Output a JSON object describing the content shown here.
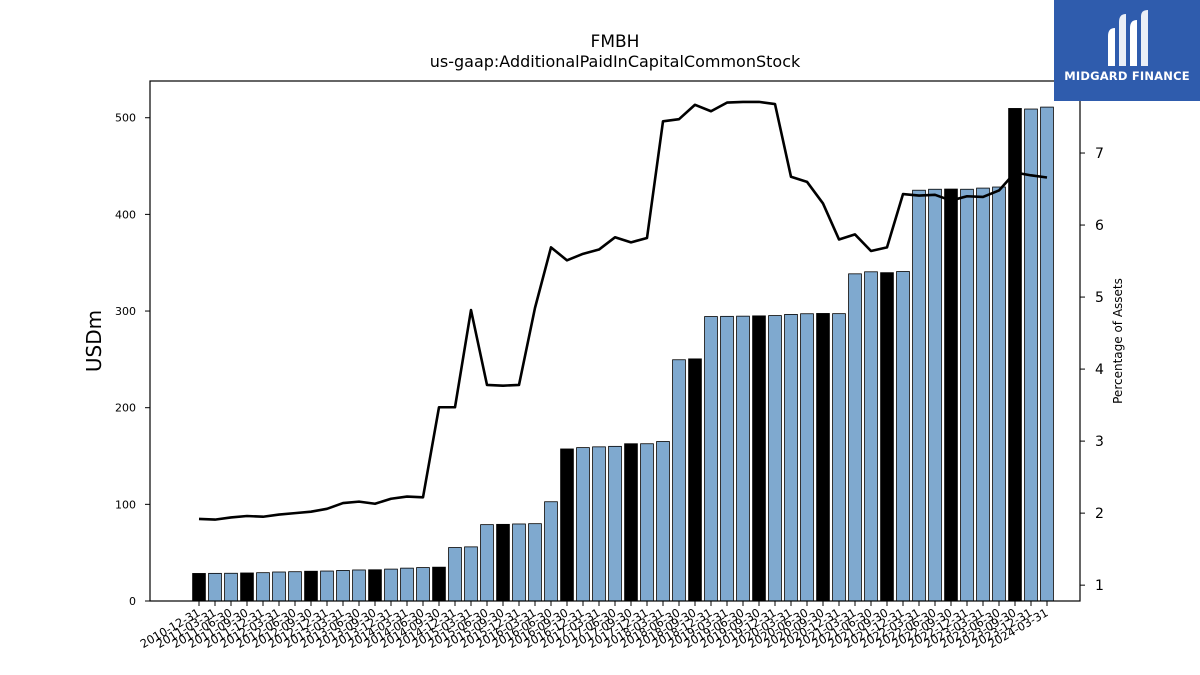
{
  "chart_data": {
    "type": "bar+line",
    "title": "FMBH",
    "subtitle": "us-gaap:AdditionalPaidInCapitalCommonStock",
    "ylabel": "USDm",
    "y2label": "Percentage of Assets",
    "ylim": [
      0,
      538
    ],
    "y2lim": [
      0.78,
      8.0
    ],
    "yticks": [
      0,
      100,
      200,
      300,
      400,
      500
    ],
    "y2ticks": [
      1,
      2,
      3,
      4,
      5,
      6,
      7
    ],
    "categories": [
      "2010-12-31",
      "2011-03-31",
      "2011-06-30",
      "2011-09-30",
      "2011-12-31",
      "2012-03-31",
      "2012-06-30",
      "2012-09-30",
      "2012-12-31",
      "2013-03-31",
      "2013-06-30",
      "2013-09-30",
      "2013-12-31",
      "2014-03-31",
      "2014-06-30",
      "2014-09-30",
      "2014-12-31",
      "2015-03-31",
      "2015-06-30",
      "2015-09-30",
      "2015-12-31",
      "2016-03-31",
      "2016-06-30",
      "2016-09-30",
      "2016-12-31",
      "2017-03-31",
      "2017-06-30",
      "2017-09-30",
      "2017-12-31",
      "2018-03-31",
      "2018-06-30",
      "2018-09-30",
      "2018-12-31",
      "2019-03-31",
      "2019-06-30",
      "2019-09-30",
      "2019-12-31",
      "2020-03-31",
      "2020-06-30",
      "2020-09-30",
      "2020-12-31",
      "2021-03-31",
      "2021-06-30",
      "2021-09-30",
      "2021-12-31",
      "2022-03-31",
      "2022-06-30",
      "2022-09-30",
      "2022-12-31",
      "2023-03-31",
      "2023-06-30",
      "2023-09-30",
      "2023-12-31",
      "2024-03-31"
    ],
    "series": [
      {
        "type": "bar",
        "values": [
          28.5,
          28.6,
          28.7,
          29,
          29.3,
          30,
          30.3,
          30.8,
          31,
          31.6,
          32.1,
          32.3,
          33,
          34,
          34.6,
          35,
          55.3,
          56,
          79,
          79.3,
          79.7,
          80,
          102.7,
          157.3,
          158.7,
          159.5,
          160,
          162.7,
          162.7,
          165,
          249.6,
          250.5,
          294.3,
          294.5,
          294.7,
          295,
          295.3,
          296.5,
          297.2,
          297.5,
          297.3,
          338.5,
          340.6,
          339.7,
          340.9,
          425,
          426,
          426.2,
          426,
          427.2,
          428.3,
          509.6,
          509,
          511
        ],
        "highlight": [
          true,
          false,
          false,
          true,
          false,
          false,
          false,
          true,
          false,
          false,
          false,
          true,
          false,
          false,
          false,
          true,
          false,
          false,
          false,
          true,
          false,
          false,
          false,
          true,
          false,
          false,
          false,
          true,
          false,
          false,
          false,
          true,
          false,
          false,
          false,
          true,
          false,
          false,
          false,
          true,
          false,
          false,
          false,
          true,
          false,
          false,
          false,
          true,
          false,
          false,
          false,
          true,
          false,
          false
        ]
      },
      {
        "type": "line",
        "axis": "right",
        "values": [
          1.92,
          1.91,
          1.94,
          1.96,
          1.95,
          1.98,
          2,
          2.02,
          2.06,
          2.14,
          2.16,
          2.13,
          2.2,
          2.23,
          2.22,
          3.47,
          3.47,
          4.82,
          3.78,
          3.77,
          3.78,
          4.85,
          5.69,
          5.51,
          5.6,
          5.66,
          5.83,
          5.76,
          5.82,
          7.44,
          7.47,
          7.67,
          7.58,
          7.7,
          7.71,
          7.71,
          7.68,
          6.67,
          6.6,
          6.3,
          5.8,
          5.87,
          5.64,
          5.69,
          6.43,
          6.41,
          6.42,
          6.34,
          6.4,
          6.39,
          6.48,
          6.73,
          6.69,
          6.66
        ]
      }
    ],
    "colors": {
      "bar": "#7fa9cf",
      "bar_highlight": "#000000",
      "bar_edge": "#000000",
      "line": "#000000"
    }
  },
  "logo": {
    "text": "MIDGARD FINANCE",
    "background": "#2f5cad"
  }
}
